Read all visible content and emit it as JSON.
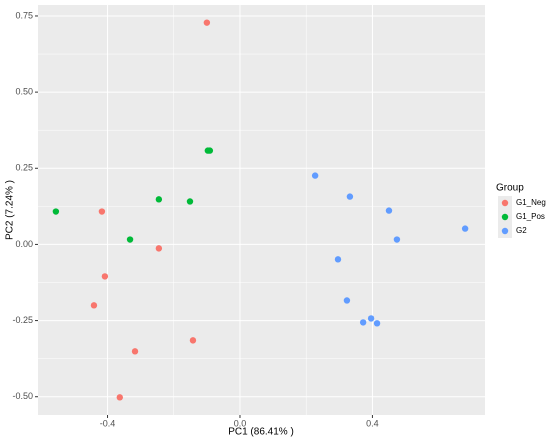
{
  "chart_data": {
    "type": "scatter",
    "x_label": "PC1 (86.41% )",
    "y_label": "PC2 (7.24% )",
    "legend_title": "Group",
    "xlim": [
      -0.61,
      0.74
    ],
    "ylim": [
      -0.56,
      0.786
    ],
    "xticks": [
      -0.4,
      {
        "value": 0,
        "label": "0.0"
      },
      0.4
    ],
    "yticks": [
      {
        "value": -0.5,
        "label": "-0.50"
      },
      -0.25,
      {
        "value": 0,
        "label": "0.00"
      },
      0.25,
      {
        "value": 0.5,
        "label": "0.50"
      },
      0.75
    ],
    "grid": true,
    "legend_position": "right",
    "series": [
      {
        "name": "G1_Neg",
        "color": "#F8766D",
        "x": [
          -0.1,
          -0.417,
          -0.245,
          -0.408,
          -0.441,
          -0.142,
          -0.317,
          -0.363
        ],
        "values": [
          0.728,
          0.108,
          -0.013,
          -0.105,
          -0.2,
          -0.315,
          -0.351,
          -0.502
        ]
      },
      {
        "name": "G1_Pos",
        "color": "#00BA38",
        "x": [
          -0.097,
          -0.091,
          -0.556,
          -0.245,
          -0.151,
          -0.332
        ],
        "values": [
          0.308,
          0.308,
          0.108,
          0.148,
          0.141,
          0.016
        ]
      },
      {
        "name": "G2",
        "color": "#619CFF",
        "x": [
          0.227,
          0.332,
          0.45,
          0.68,
          0.474,
          0.296,
          0.323,
          0.372,
          0.396,
          0.414
        ],
        "values": [
          0.226,
          0.157,
          0.111,
          0.052,
          0.016,
          -0.049,
          -0.184,
          -0.256,
          -0.243,
          -0.259
        ]
      }
    ]
  }
}
